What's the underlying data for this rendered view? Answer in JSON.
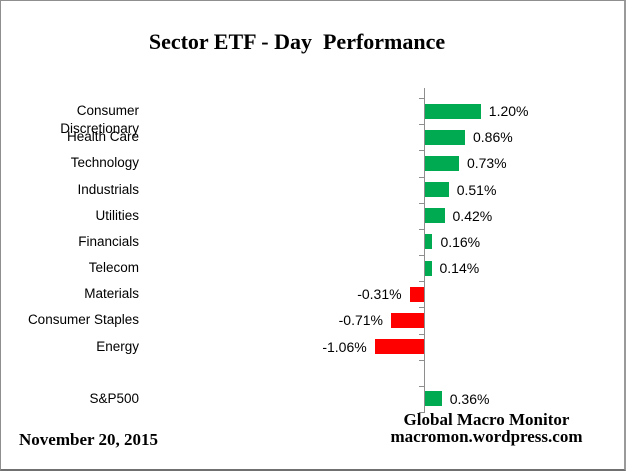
{
  "title": "Sector ETF - Day  Performance",
  "footer": {
    "date": "November 20, 2015",
    "source_line1": "Global Macro Monitor",
    "source_line2": "macromon.wordpress.com"
  },
  "colors": {
    "positive_bar": "#00AA50",
    "negative_bar": "#FF0000",
    "axis": "#8E8E8E",
    "text": "#000000",
    "background": "#FFFFFF"
  },
  "chart_data": {
    "type": "bar",
    "orientation": "horizontal",
    "title": "Sector ETF - Day  Performance",
    "xlabel": "",
    "ylabel": "",
    "unit": "percent",
    "grid": false,
    "legend": false,
    "categories": [
      "Consumer Discretionary",
      "Health Care",
      "Technology",
      "Industrials",
      "Utilities",
      "Financials",
      "Telecom",
      "Materials",
      "Consumer Staples",
      "Energy",
      "",
      "S&P500"
    ],
    "values": [
      1.2,
      0.86,
      0.73,
      0.51,
      0.42,
      0.16,
      0.14,
      -0.31,
      -0.71,
      -1.06,
      null,
      0.36
    ],
    "value_labels": [
      "1.20%",
      "0.86%",
      "0.73%",
      "0.51%",
      "0.42%",
      "0.16%",
      "0.14%",
      "-0.31%",
      "-0.71%",
      "-1.06%",
      "",
      "0.36%"
    ],
    "positive_color": "#00AA50",
    "negative_color": "#FF0000",
    "note": "blank category row separates sector ETFs from S&P500 benchmark"
  }
}
